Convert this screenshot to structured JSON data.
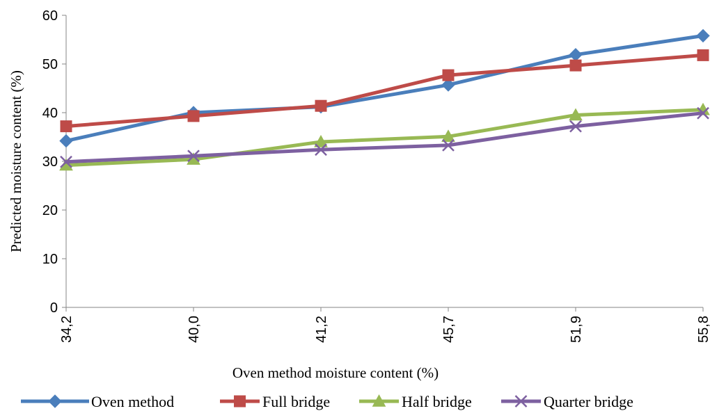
{
  "chart_data": {
    "type": "line",
    "xlabel": "Oven method moisture content (%)",
    "ylabel": "Predicted moisture content (%)",
    "categories": [
      "34,2",
      "40,0",
      "41,2",
      "45,7",
      "51,9",
      "55,8"
    ],
    "ylim": [
      0,
      60
    ],
    "yticks": [
      0,
      10,
      20,
      30,
      40,
      50,
      60
    ],
    "grid": false,
    "legend_position": "bottom",
    "series": [
      {
        "name": "Oven method",
        "color": "#4A7EBB",
        "marker": "diamond",
        "values": [
          34.2,
          40.0,
          41.2,
          45.7,
          51.9,
          55.8
        ]
      },
      {
        "name": "Full bridge",
        "color": "#BE4B48",
        "marker": "square",
        "values": [
          37.2,
          39.3,
          41.4,
          47.7,
          49.7,
          51.8
        ]
      },
      {
        "name": "Half bridge",
        "color": "#98B954",
        "marker": "triangle",
        "values": [
          29.2,
          30.4,
          34.0,
          35.1,
          39.5,
          40.6
        ]
      },
      {
        "name": "Quarter bridge",
        "color": "#7D60A0",
        "marker": "x",
        "values": [
          29.9,
          31.1,
          32.4,
          33.3,
          37.2,
          39.9
        ]
      }
    ]
  }
}
